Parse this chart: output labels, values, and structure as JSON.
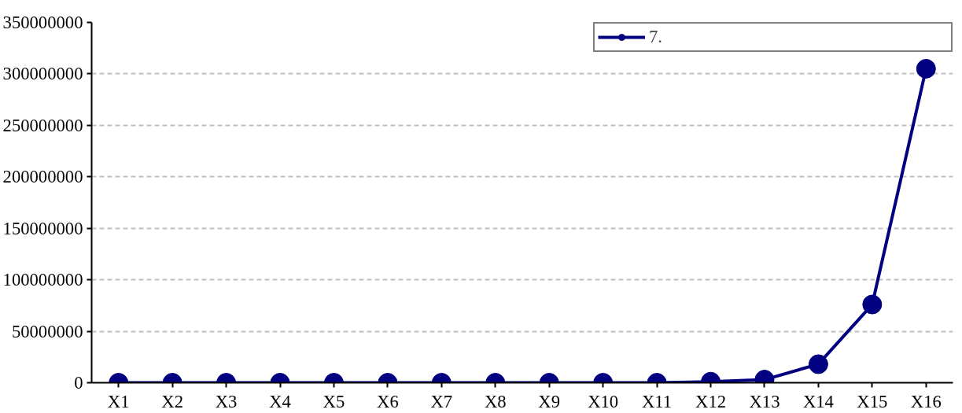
{
  "chart_data": {
    "type": "line",
    "categories": [
      "X1",
      "X2",
      "X3",
      "X4",
      "X5",
      "X6",
      "X7",
      "X8",
      "X9",
      "X10",
      "X11",
      "X12",
      "X13",
      "X14",
      "X15",
      "X16"
    ],
    "series": [
      {
        "name": "7.",
        "color": "#000080",
        "values": [
          0,
          0,
          0,
          0,
          0,
          0,
          0,
          0,
          0,
          0,
          0,
          1000000,
          3000000,
          18000000,
          76000000,
          305000000
        ]
      }
    ],
    "ylim": [
      0,
      350000000
    ],
    "yticks": [
      0,
      50000000,
      100000000,
      150000000,
      200000000,
      250000000,
      300000000,
      350000000
    ],
    "grid": "y",
    "legend": "top right",
    "marker": "circle",
    "line_style": "solid"
  }
}
